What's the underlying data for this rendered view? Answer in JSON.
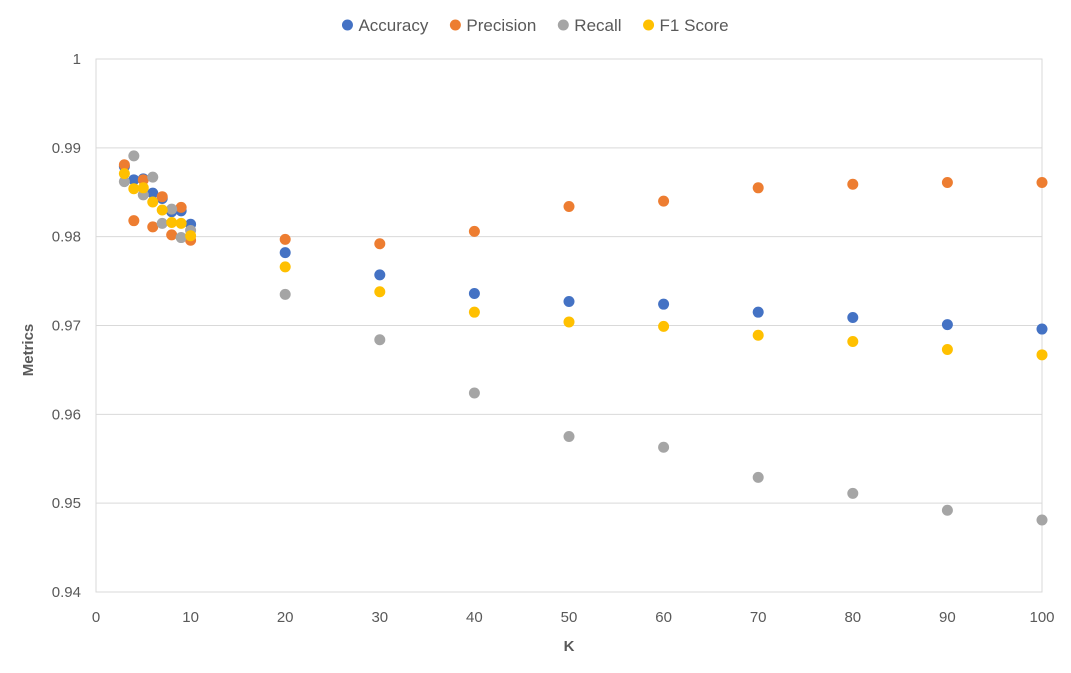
{
  "chart_data": {
    "type": "scatter",
    "title": "",
    "xlabel": "K",
    "ylabel": "Metrics",
    "xlim": [
      0,
      100
    ],
    "ylim": [
      0.94,
      1
    ],
    "xticks": [
      0,
      10,
      20,
      30,
      40,
      50,
      60,
      70,
      80,
      90,
      100
    ],
    "xtick_labels": [
      "0",
      "10",
      "20",
      "30",
      "40",
      "50",
      "60",
      "70",
      "80",
      "90",
      "100"
    ],
    "yticks": [
      0.94,
      0.95,
      0.96,
      0.97,
      0.98,
      0.99,
      1
    ],
    "ytick_labels": [
      "0.94",
      "0.95",
      "0.96",
      "0.97",
      "0.98",
      "0.99",
      "1"
    ],
    "grid": "horizontal",
    "legend_position": "top",
    "x": [
      3,
      4,
      5,
      6,
      7,
      8,
      9,
      10,
      20,
      30,
      40,
      50,
      60,
      70,
      80,
      90,
      100
    ],
    "series": [
      {
        "name": "Accuracy",
        "color": "#4472c4",
        "values": [
          0.9879,
          0.9864,
          0.9865,
          0.9849,
          0.9843,
          0.9828,
          0.9829,
          0.9814,
          0.9782,
          0.9757,
          0.9736,
          0.9727,
          0.9724,
          0.9715,
          0.9709,
          0.9701,
          0.9696
        ]
      },
      {
        "name": "Precision",
        "color": "#ed7d31",
        "values": [
          0.9881,
          0.9818,
          0.9864,
          0.9811,
          0.9845,
          0.9802,
          0.9833,
          0.9796,
          0.9797,
          0.9792,
          0.9806,
          0.9834,
          0.984,
          0.9855,
          0.9859,
          0.9861,
          0.9861
        ]
      },
      {
        "name": "Recall",
        "color": "#a5a5a5",
        "values": [
          0.9862,
          0.9891,
          0.9847,
          0.9867,
          0.9815,
          0.9831,
          0.9799,
          0.9807,
          0.9735,
          0.9684,
          0.9624,
          0.9575,
          0.9563,
          0.9529,
          0.9511,
          0.9492,
          0.9481
        ]
      },
      {
        "name": "F1 Score",
        "color": "#ffc000",
        "values": [
          0.9871,
          0.9854,
          0.9855,
          0.9839,
          0.983,
          0.9816,
          0.9815,
          0.9801,
          0.9766,
          0.9738,
          0.9715,
          0.9704,
          0.9699,
          0.9689,
          0.9682,
          0.9673,
          0.9667
        ]
      }
    ]
  }
}
